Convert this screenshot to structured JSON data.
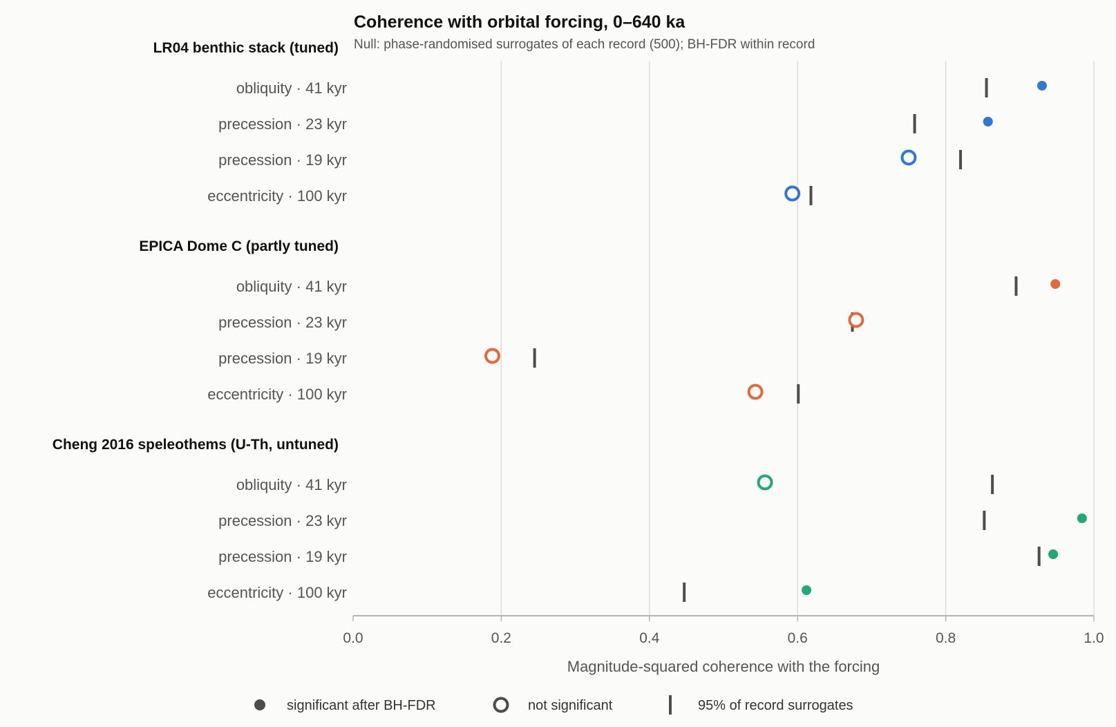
{
  "chart_data": {
    "type": "scatter",
    "title": "Coherence with orbital forcing, 0–640 ka",
    "subtitle": "Null: phase-randomised surrogates of each record (500); BH-FDR within record",
    "xlabel": "Magnitude-squared coherence with the forcing",
    "xlim": [
      0.0,
      1.0
    ],
    "xticks": [
      "0.0",
      "0.2",
      "0.4",
      "0.6",
      "0.8",
      "1.0"
    ],
    "grid": "vertical",
    "legend_position": "bottom",
    "legend": {
      "significant": "significant after BH-FDR",
      "not_significant": "not significant",
      "threshold": "95% of record surrogates"
    },
    "threshold_color": "#4d4d4d",
    "groups": [
      {
        "name": "LR04 benthic stack (tuned)",
        "color": "#2f78d6",
        "rows": [
          {
            "label": "obliquity · 41 kyr",
            "coherence": 0.93,
            "threshold": 0.855,
            "significant": true
          },
          {
            "label": "precession · 23 kyr",
            "coherence": 0.857,
            "threshold": 0.758,
            "significant": true
          },
          {
            "label": "precession · 19 kyr",
            "coherence": 0.75,
            "threshold": 0.82,
            "significant": false
          },
          {
            "label": "eccentricity · 100 kyr",
            "coherence": 0.593,
            "threshold": 0.618,
            "significant": false
          }
        ]
      },
      {
        "name": "EPICA Dome C (partly tuned)",
        "color": "#e3693d",
        "rows": [
          {
            "label": "obliquity · 41 kyr",
            "coherence": 0.948,
            "threshold": 0.895,
            "significant": true
          },
          {
            "label": "precession · 23 kyr",
            "coherence": 0.679,
            "threshold": 0.674,
            "significant": false
          },
          {
            "label": "precession · 19 kyr",
            "coherence": 0.188,
            "threshold": 0.245,
            "significant": false
          },
          {
            "label": "eccentricity · 100 kyr",
            "coherence": 0.543,
            "threshold": 0.601,
            "significant": false
          }
        ]
      },
      {
        "name": "Cheng 2016 speleothems (U-Th, untuned)",
        "color": "#22a87a",
        "rows": [
          {
            "label": "obliquity · 41 kyr",
            "coherence": 0.556,
            "threshold": 0.863,
            "significant": false
          },
          {
            "label": "precession · 23 kyr",
            "coherence": 0.984,
            "threshold": 0.852,
            "significant": true
          },
          {
            "label": "precession · 19 kyr",
            "coherence": 0.945,
            "threshold": 0.926,
            "significant": true
          },
          {
            "label": "eccentricity · 100 kyr",
            "coherence": 0.612,
            "threshold": 0.447,
            "significant": true
          }
        ]
      }
    ]
  }
}
